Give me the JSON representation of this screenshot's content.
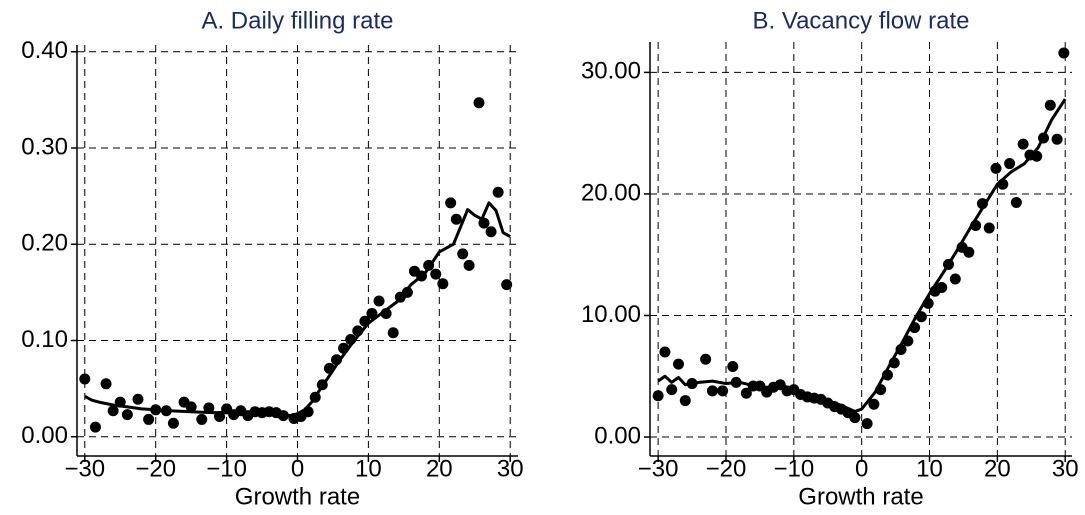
{
  "chart_data": [
    {
      "type": "scatter",
      "title": "A. Daily filling rate",
      "x_label": "Growth rate",
      "xlim": [
        -31.1,
        31.1
      ],
      "ylim": [
        -0.02,
        0.407
      ],
      "grid": true,
      "xticks": [
        {
          "value": -30,
          "label": "−30"
        },
        {
          "value": -20,
          "label": "−20"
        },
        {
          "value": -10,
          "label": "−10"
        },
        0,
        10,
        20,
        30
      ],
      "yticks": [
        {
          "value": 0,
          "label": "0.00"
        },
        {
          "value": 0.1,
          "label": "0.10"
        },
        {
          "value": 0.2,
          "label": "0.20"
        },
        {
          "value": 0.3,
          "label": "0.30"
        },
        {
          "value": 0.4,
          "label": "0.40"
        }
      ],
      "series": [
        {
          "mode": "markers",
          "color": "#000000",
          "x": [
            -30,
            -28.5,
            -27,
            -26,
            -25,
            -24,
            -22.5,
            -21,
            -20,
            -18.5,
            -17.5,
            -16,
            -15,
            -13.5,
            -12.5,
            -11,
            -10,
            -9,
            -8,
            -7,
            -6,
            -5,
            -4,
            -3,
            -2,
            -0.5,
            0.5,
            1.5,
            2.5,
            3.5,
            4.5,
            5.5,
            6.5,
            7.5,
            8.5,
            9.5,
            10.5,
            11.5,
            12.5,
            13.5,
            14.5,
            15.5,
            16.5,
            17.5,
            18.5,
            19.5,
            20.5,
            21.6,
            22.4,
            23.3,
            24.2,
            25.6,
            26.3,
            27.3,
            28.3,
            29.5
          ],
          "values": [
            0.06,
            0.01,
            0.055,
            0.027,
            0.036,
            0.023,
            0.039,
            0.018,
            0.028,
            0.027,
            0.014,
            0.036,
            0.031,
            0.018,
            0.03,
            0.021,
            0.029,
            0.023,
            0.027,
            0.022,
            0.026,
            0.025,
            0.026,
            0.025,
            0.022,
            0.019,
            0.021,
            0.026,
            0.041,
            0.054,
            0.071,
            0.08,
            0.092,
            0.101,
            0.11,
            0.12,
            0.128,
            0.141,
            0.128,
            0.108,
            0.145,
            0.15,
            0.172,
            0.167,
            0.178,
            0.169,
            0.159,
            0.243,
            0.226,
            0.19,
            0.178,
            0.347,
            0.222,
            0.213,
            0.254,
            0.158
          ]
        },
        {
          "mode": "line",
          "color": "#000000",
          "x": [
            -30,
            -29,
            -28,
            -26,
            -24,
            -22,
            -20,
            -18,
            -15,
            -12,
            -9,
            -6,
            -3,
            -1,
            0,
            1,
            2,
            4,
            6,
            8,
            10,
            12,
            14,
            16,
            18,
            20,
            22,
            23,
            24,
            25,
            26,
            27,
            28,
            29,
            30
          ],
          "values": [
            0.042,
            0.038,
            0.036,
            0.033,
            0.031,
            0.029,
            0.028,
            0.027,
            0.026,
            0.025,
            0.025,
            0.025,
            0.024,
            0.022,
            0.024,
            0.028,
            0.036,
            0.058,
            0.08,
            0.1,
            0.118,
            0.129,
            0.14,
            0.158,
            0.17,
            0.192,
            0.2,
            0.218,
            0.236,
            0.23,
            0.226,
            0.243,
            0.235,
            0.212,
            0.208
          ]
        }
      ]
    },
    {
      "type": "scatter",
      "title": "B. Vacancy flow rate",
      "x_label": "Growth rate",
      "xlim": [
        -31.2,
        31.0
      ],
      "ylim": [
        -1.56,
        32.5
      ],
      "grid": true,
      "xticks": [
        {
          "value": -30,
          "label": "−30"
        },
        {
          "value": -20,
          "label": "−20"
        },
        {
          "value": -10,
          "label": "−10"
        },
        0,
        10,
        20,
        30
      ],
      "yticks": [
        {
          "value": 0,
          "label": "0.00"
        },
        {
          "value": 10,
          "label": "10.00"
        },
        {
          "value": 20,
          "label": "20.00"
        },
        {
          "value": 30,
          "label": "30.00"
        }
      ],
      "series": [
        {
          "mode": "markers",
          "color": "#000000",
          "x": [
            -30,
            -29,
            -28,
            -27,
            -26,
            -25,
            -23,
            -22,
            -20.5,
            -19,
            -18.5,
            -17,
            -16,
            -15,
            -14,
            -13,
            -12,
            -11,
            -10,
            -9,
            -8,
            -7,
            -6,
            -5,
            -4,
            -3,
            -2,
            -1,
            0.8,
            1.8,
            2.8,
            3.8,
            4.8,
            5.8,
            6.8,
            7.8,
            8.8,
            9.8,
            10.8,
            11.8,
            12.8,
            13.8,
            14.8,
            15.8,
            16.8,
            17.8,
            18.8,
            19.8,
            20.8,
            21.8,
            22.8,
            23.8,
            24.8,
            25.8,
            26.8,
            27.8,
            28.8,
            29.8
          ],
          "values": [
            3.4,
            7.0,
            3.9,
            6.0,
            3.0,
            4.4,
            6.4,
            3.8,
            3.8,
            5.8,
            4.5,
            3.6,
            4.2,
            4.2,
            3.7,
            4.1,
            4.3,
            3.8,
            3.9,
            3.5,
            3.3,
            3.2,
            3.1,
            2.8,
            2.5,
            2.3,
            2.0,
            1.6,
            1.1,
            2.7,
            3.9,
            5.1,
            6.1,
            7.2,
            7.9,
            9.0,
            9.9,
            11.0,
            12.0,
            12.3,
            14.2,
            13.0,
            15.6,
            15.2,
            17.4,
            19.2,
            17.2,
            22.1,
            20.8,
            22.5,
            19.3,
            24.1,
            23.2,
            23.1,
            24.6,
            27.3,
            24.5,
            31.6
          ]
        },
        {
          "mode": "line",
          "color": "#000000",
          "x": [
            -30,
            -29,
            -28,
            -27,
            -26,
            -24,
            -22,
            -20,
            -18,
            -15,
            -12,
            -9,
            -6,
            -3,
            -1,
            0,
            2,
            4,
            6,
            8,
            10,
            12,
            14,
            16,
            18,
            20,
            22,
            24,
            26,
            28,
            30
          ],
          "values": [
            4.6,
            5.0,
            4.5,
            4.9,
            4.3,
            4.5,
            4.6,
            4.4,
            4.5,
            4.1,
            4.1,
            3.7,
            3.2,
            2.6,
            2.1,
            2.3,
            3.7,
            5.8,
            7.8,
            9.9,
            11.8,
            13.5,
            15.3,
            17.2,
            19.0,
            20.8,
            21.8,
            22.5,
            23.8,
            26.1,
            27.8
          ]
        }
      ]
    }
  ]
}
